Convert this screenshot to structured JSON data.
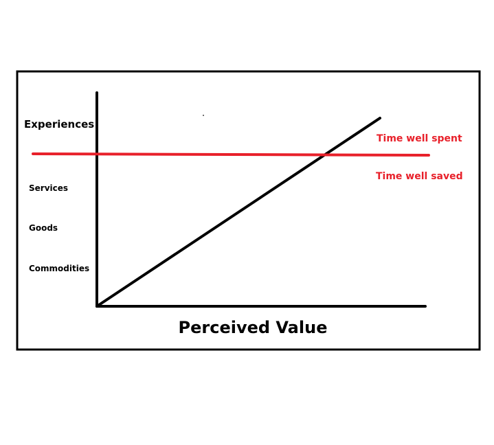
{
  "diagram": {
    "y_levels": [
      "Experiences",
      "Services",
      "Goods",
      "Commodities"
    ],
    "x_axis_label": "Perceived Value",
    "threshold": {
      "above_label": "Time well spent",
      "below_label": "Time well saved"
    },
    "colors": {
      "frame": "#000000",
      "axes": "#000000",
      "trend_line": "#000000",
      "threshold_line": "#e8202a",
      "threshold_text": "#e8202a",
      "text": "#000000"
    }
  }
}
